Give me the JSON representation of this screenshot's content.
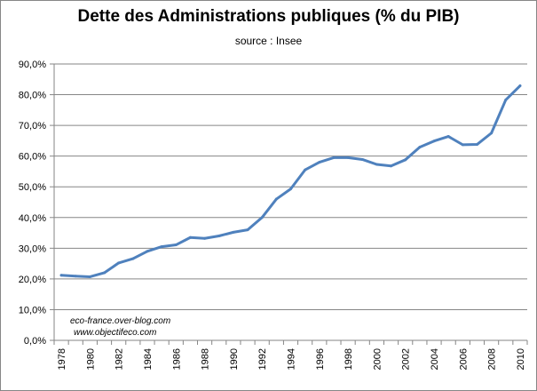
{
  "chart_data": {
    "type": "line",
    "title": "Dette des Administrations  publiques  (% du PIB)",
    "subtitle": "source : Insee",
    "xlabel": "",
    "ylabel": "",
    "ylim": [
      0,
      90
    ],
    "y_ticks": [
      "0,0%",
      "10,0%",
      "20,0%",
      "30,0%",
      "40,0%",
      "50,0%",
      "60,0%",
      "70,0%",
      "80,0%",
      "90,0%"
    ],
    "x_tick_labels": [
      "1978",
      "1980",
      "1982",
      "1984",
      "1986",
      "1988",
      "1990",
      "1992",
      "1994",
      "1996",
      "1998",
      "2000",
      "2002",
      "2004",
      "2006",
      "2008",
      "2010"
    ],
    "grid": "horizontal",
    "legend": "none",
    "line_color": "#4f81bd",
    "x": [
      1978,
      1979,
      1980,
      1981,
      1982,
      1983,
      1984,
      1985,
      1986,
      1987,
      1988,
      1989,
      1990,
      1991,
      1992,
      1993,
      1994,
      1995,
      1996,
      1997,
      1998,
      1999,
      2000,
      2001,
      2002,
      2003,
      2004,
      2005,
      2006,
      2007,
      2008,
      2009,
      2010
    ],
    "series": [
      {
        "values": [
          21.2,
          20.9,
          20.7,
          22.0,
          25.2,
          26.6,
          29.0,
          30.5,
          31.1,
          33.5,
          33.2,
          34.0,
          35.2,
          36.0,
          40.0,
          46.0,
          49.3,
          55.5,
          58.0,
          59.5,
          59.5,
          58.9,
          57.3,
          56.8,
          58.8,
          62.9,
          64.9,
          66.4,
          63.7,
          63.8,
          67.5,
          78.3,
          82.9
        ]
      }
    ]
  },
  "watermark": {
    "line1": "eco-france.over-blog.com",
    "line2": "www.objectifeco.com"
  }
}
